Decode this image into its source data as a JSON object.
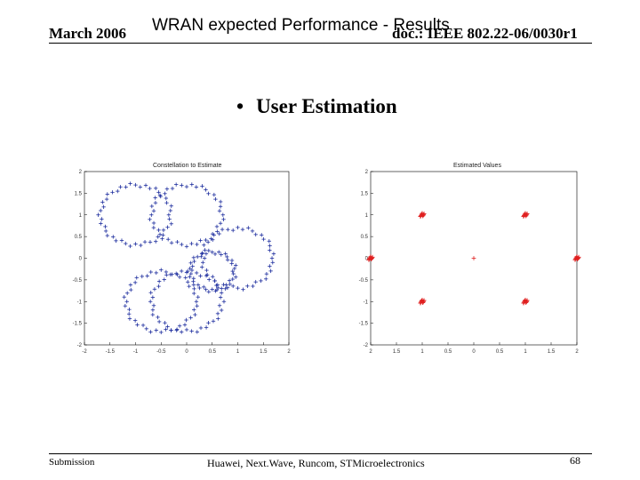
{
  "header": {
    "date": "March 2006",
    "title": "WRAN expected Performance - Results",
    "doc": "doc.: IEEE 802.22-06/0030r1"
  },
  "bullet": {
    "symbol": "•",
    "text": "User Estimation"
  },
  "footer": {
    "left": "Submission",
    "middle": "Huawei, Next.Wave, Runcom, STMicroelectronics",
    "page": "68"
  },
  "chart_data": [
    {
      "type": "scatter",
      "title": "Constellation to Estimate",
      "color": "#1f2f9f",
      "marker": "+",
      "xlim": [
        -2,
        2
      ],
      "ylim": [
        -2,
        2
      ],
      "xticks": [
        "-2",
        "-1.5",
        "-1",
        "-0.5",
        "0",
        "0.5",
        "1",
        "1.5",
        "2"
      ],
      "yticks": [
        "2",
        "1.5",
        "1",
        "0.5",
        "0",
        "-0.5",
        "-1",
        "-1.5",
        "-2"
      ],
      "rings": [
        {
          "cx": -1.0,
          "cy": 1.0,
          "r": 0.65
        },
        {
          "cx": 0.0,
          "cy": 1.0,
          "r": 0.65
        },
        {
          "cx": 1.0,
          "cy": 0.0,
          "r": 0.65
        },
        {
          "cx": 0.0,
          "cy": -1.0,
          "r": 0.65
        },
        {
          "cx": -0.5,
          "cy": -1.0,
          "r": 0.65
        },
        {
          "cx": 0.5,
          "cy": -0.3,
          "r": 0.4
        }
      ]
    },
    {
      "type": "scatter",
      "title": "Estimated Values",
      "color": "#e02020",
      "marker": "+",
      "xlim": [
        -2,
        2
      ],
      "ylim": [
        -2,
        2
      ],
      "xticks": [
        "2",
        "1.5",
        "1",
        "0.5",
        "0",
        "0.5",
        "1",
        "1.5",
        "2"
      ],
      "yticks": [
        "2",
        "1.5",
        "1",
        "0.5",
        "0",
        "-0.5",
        "-1",
        "-1.5",
        "-2"
      ],
      "clusters": [
        {
          "x": -1,
          "y": 1
        },
        {
          "x": 1,
          "y": 1
        },
        {
          "x": -2,
          "y": 0
        },
        {
          "x": 2,
          "y": 0
        },
        {
          "x": -1,
          "y": -1
        },
        {
          "x": 1,
          "y": -1
        }
      ],
      "center_point": {
        "x": 0,
        "y": 0
      }
    }
  ]
}
